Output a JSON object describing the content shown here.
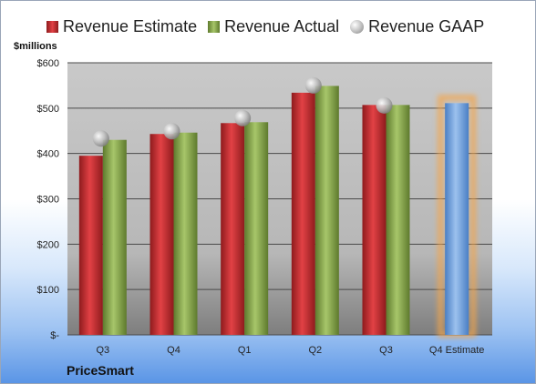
{
  "legend": {
    "estimate_label": "Revenue Estimate",
    "actual_label": "Revenue Actual",
    "gaap_label": "Revenue GAAP"
  },
  "units_label": "$millions",
  "company": "PriceSmart",
  "colors": {
    "estimate": "#c8282b",
    "actual": "#8cab52",
    "gaap": "#a9a9a9",
    "forecast": "#6f9fd8",
    "forecast_glow": "#f5a54a"
  },
  "chart_data": {
    "type": "bar",
    "categories": [
      "Q3",
      "Q4",
      "Q1",
      "Q2",
      "Q3",
      "Q4 Estimate"
    ],
    "ylabel": "$millions",
    "ylim": [
      0,
      600
    ],
    "y_ticks": [
      0,
      100,
      200,
      300,
      400,
      500,
      600
    ],
    "y_tick_labels": [
      "$-",
      "$100",
      "$200",
      "$300",
      "$400",
      "$500",
      "$600"
    ],
    "grid": true,
    "legend_position": "top",
    "series": [
      {
        "name": "Revenue Estimate",
        "values": [
          395,
          443,
          467,
          534,
          507,
          null
        ]
      },
      {
        "name": "Revenue Actual",
        "values": [
          430,
          446,
          469,
          549,
          507,
          null
        ]
      },
      {
        "name": "Revenue GAAP",
        "values": [
          433,
          449,
          478,
          550,
          506,
          null
        ]
      }
    ],
    "forecast": {
      "category": "Q4 Estimate",
      "value": 511
    }
  }
}
